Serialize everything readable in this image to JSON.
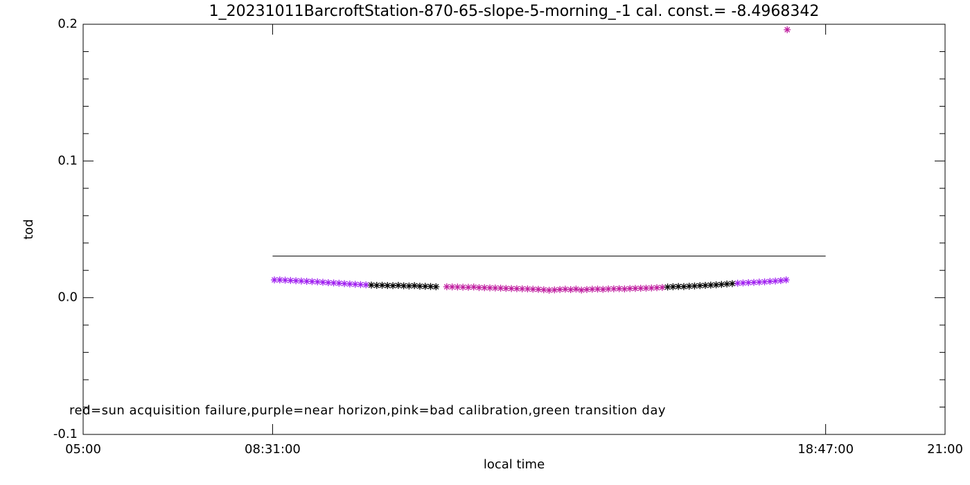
{
  "chart_data": {
    "type": "scatter",
    "title": "1_20231011BarcroftStation-870-65-slope-5-morning_-1 cal. const.= -8.4968342",
    "xlabel": "local time",
    "ylabel": "tod",
    "annotation": "red=sun acquisition failure,purple=near horizon,pink=bad calibration,green transition day",
    "xlim": [
      5,
      21
    ],
    "ylim": [
      -0.1,
      0.2
    ],
    "xticks": [
      {
        "value": 5,
        "label": "05:00"
      },
      {
        "value": 8.5167,
        "label": "08:31:00"
      },
      {
        "value": 18.7833,
        "label": "18:47:00"
      },
      {
        "value": 21,
        "label": "21:00"
      }
    ],
    "yticks": [
      -0.1,
      {
        "value": 0,
        "label": "0.0"
      },
      0.1,
      0.2
    ],
    "reference_line": {
      "x": [
        8.5167,
        18.7833
      ],
      "values": [
        0.0304,
        0.0304
      ],
      "color": "#000000"
    },
    "series": [
      {
        "color": "#a020f0",
        "x": [
          8.55,
          8.65,
          8.75,
          8.85,
          8.95,
          9.05,
          9.15,
          9.25,
          9.35,
          9.45,
          9.55,
          9.65,
          9.75,
          9.85,
          9.95,
          10.05,
          10.15,
          10.25
        ],
        "values": [
          0.013,
          0.013,
          0.0128,
          0.0126,
          0.0124,
          0.0122,
          0.012,
          0.0118,
          0.0116,
          0.0113,
          0.011,
          0.0108,
          0.0106,
          0.0103,
          0.01,
          0.0098,
          0.0096,
          0.0094
        ]
      },
      {
        "color": "#000000",
        "x": [
          10.35,
          10.45,
          10.55,
          10.65,
          10.75,
          10.85,
          10.95,
          11.05,
          11.15,
          11.25,
          11.35,
          11.45,
          11.55
        ],
        "values": [
          0.0092,
          0.009,
          0.0091,
          0.0089,
          0.0088,
          0.009,
          0.0087,
          0.0086,
          0.0088,
          0.0084,
          0.0083,
          0.0082,
          0.008
        ]
      },
      {
        "color": "#c020a0",
        "x": [
          11.75,
          11.85,
          11.95,
          12.05,
          12.15,
          12.25,
          12.35,
          12.45,
          12.55,
          12.65,
          12.75,
          12.85,
          12.95,
          13.05,
          13.15,
          13.25,
          13.35,
          13.45,
          13.55,
          13.65,
          13.75,
          13.85,
          13.95,
          14.05,
          14.15,
          14.25,
          14.35,
          14.45,
          14.55,
          14.65,
          14.75,
          14.85,
          14.95,
          15.05,
          15.15,
          15.25,
          15.35,
          15.45,
          15.55,
          15.65,
          15.75
        ],
        "values": [
          0.008,
          0.0079,
          0.0078,
          0.0077,
          0.0076,
          0.0078,
          0.0074,
          0.0073,
          0.0072,
          0.0071,
          0.007,
          0.0068,
          0.0067,
          0.0066,
          0.0065,
          0.0064,
          0.0062,
          0.0061,
          0.0058,
          0.0055,
          0.0057,
          0.006,
          0.0062,
          0.0059,
          0.0063,
          0.0056,
          0.006,
          0.0062,
          0.0063,
          0.0061,
          0.0064,
          0.0065,
          0.0066,
          0.0064,
          0.0067,
          0.0068,
          0.0069,
          0.007,
          0.0071,
          0.0073,
          0.0075
        ]
      },
      {
        "color": "#000000",
        "x": [
          15.85,
          15.95,
          16.05,
          16.15,
          16.25,
          16.35,
          16.45,
          16.55,
          16.65,
          16.75,
          16.85,
          16.95,
          17.05
        ],
        "values": [
          0.0078,
          0.008,
          0.0082,
          0.0081,
          0.0084,
          0.0086,
          0.0088,
          0.009,
          0.0092,
          0.0094,
          0.0097,
          0.01,
          0.0103
        ]
      },
      {
        "color": "#a020f0",
        "x": [
          17.15,
          17.25,
          17.35,
          17.45,
          17.55,
          17.65,
          17.75,
          17.85,
          17.95,
          18.05
        ],
        "values": [
          0.0106,
          0.0108,
          0.011,
          0.0112,
          0.0114,
          0.0116,
          0.0119,
          0.0122,
          0.0125,
          0.013
        ]
      },
      {
        "color": "#c020a0",
        "x": [
          18.07
        ],
        "values": [
          0.196
        ]
      }
    ]
  }
}
